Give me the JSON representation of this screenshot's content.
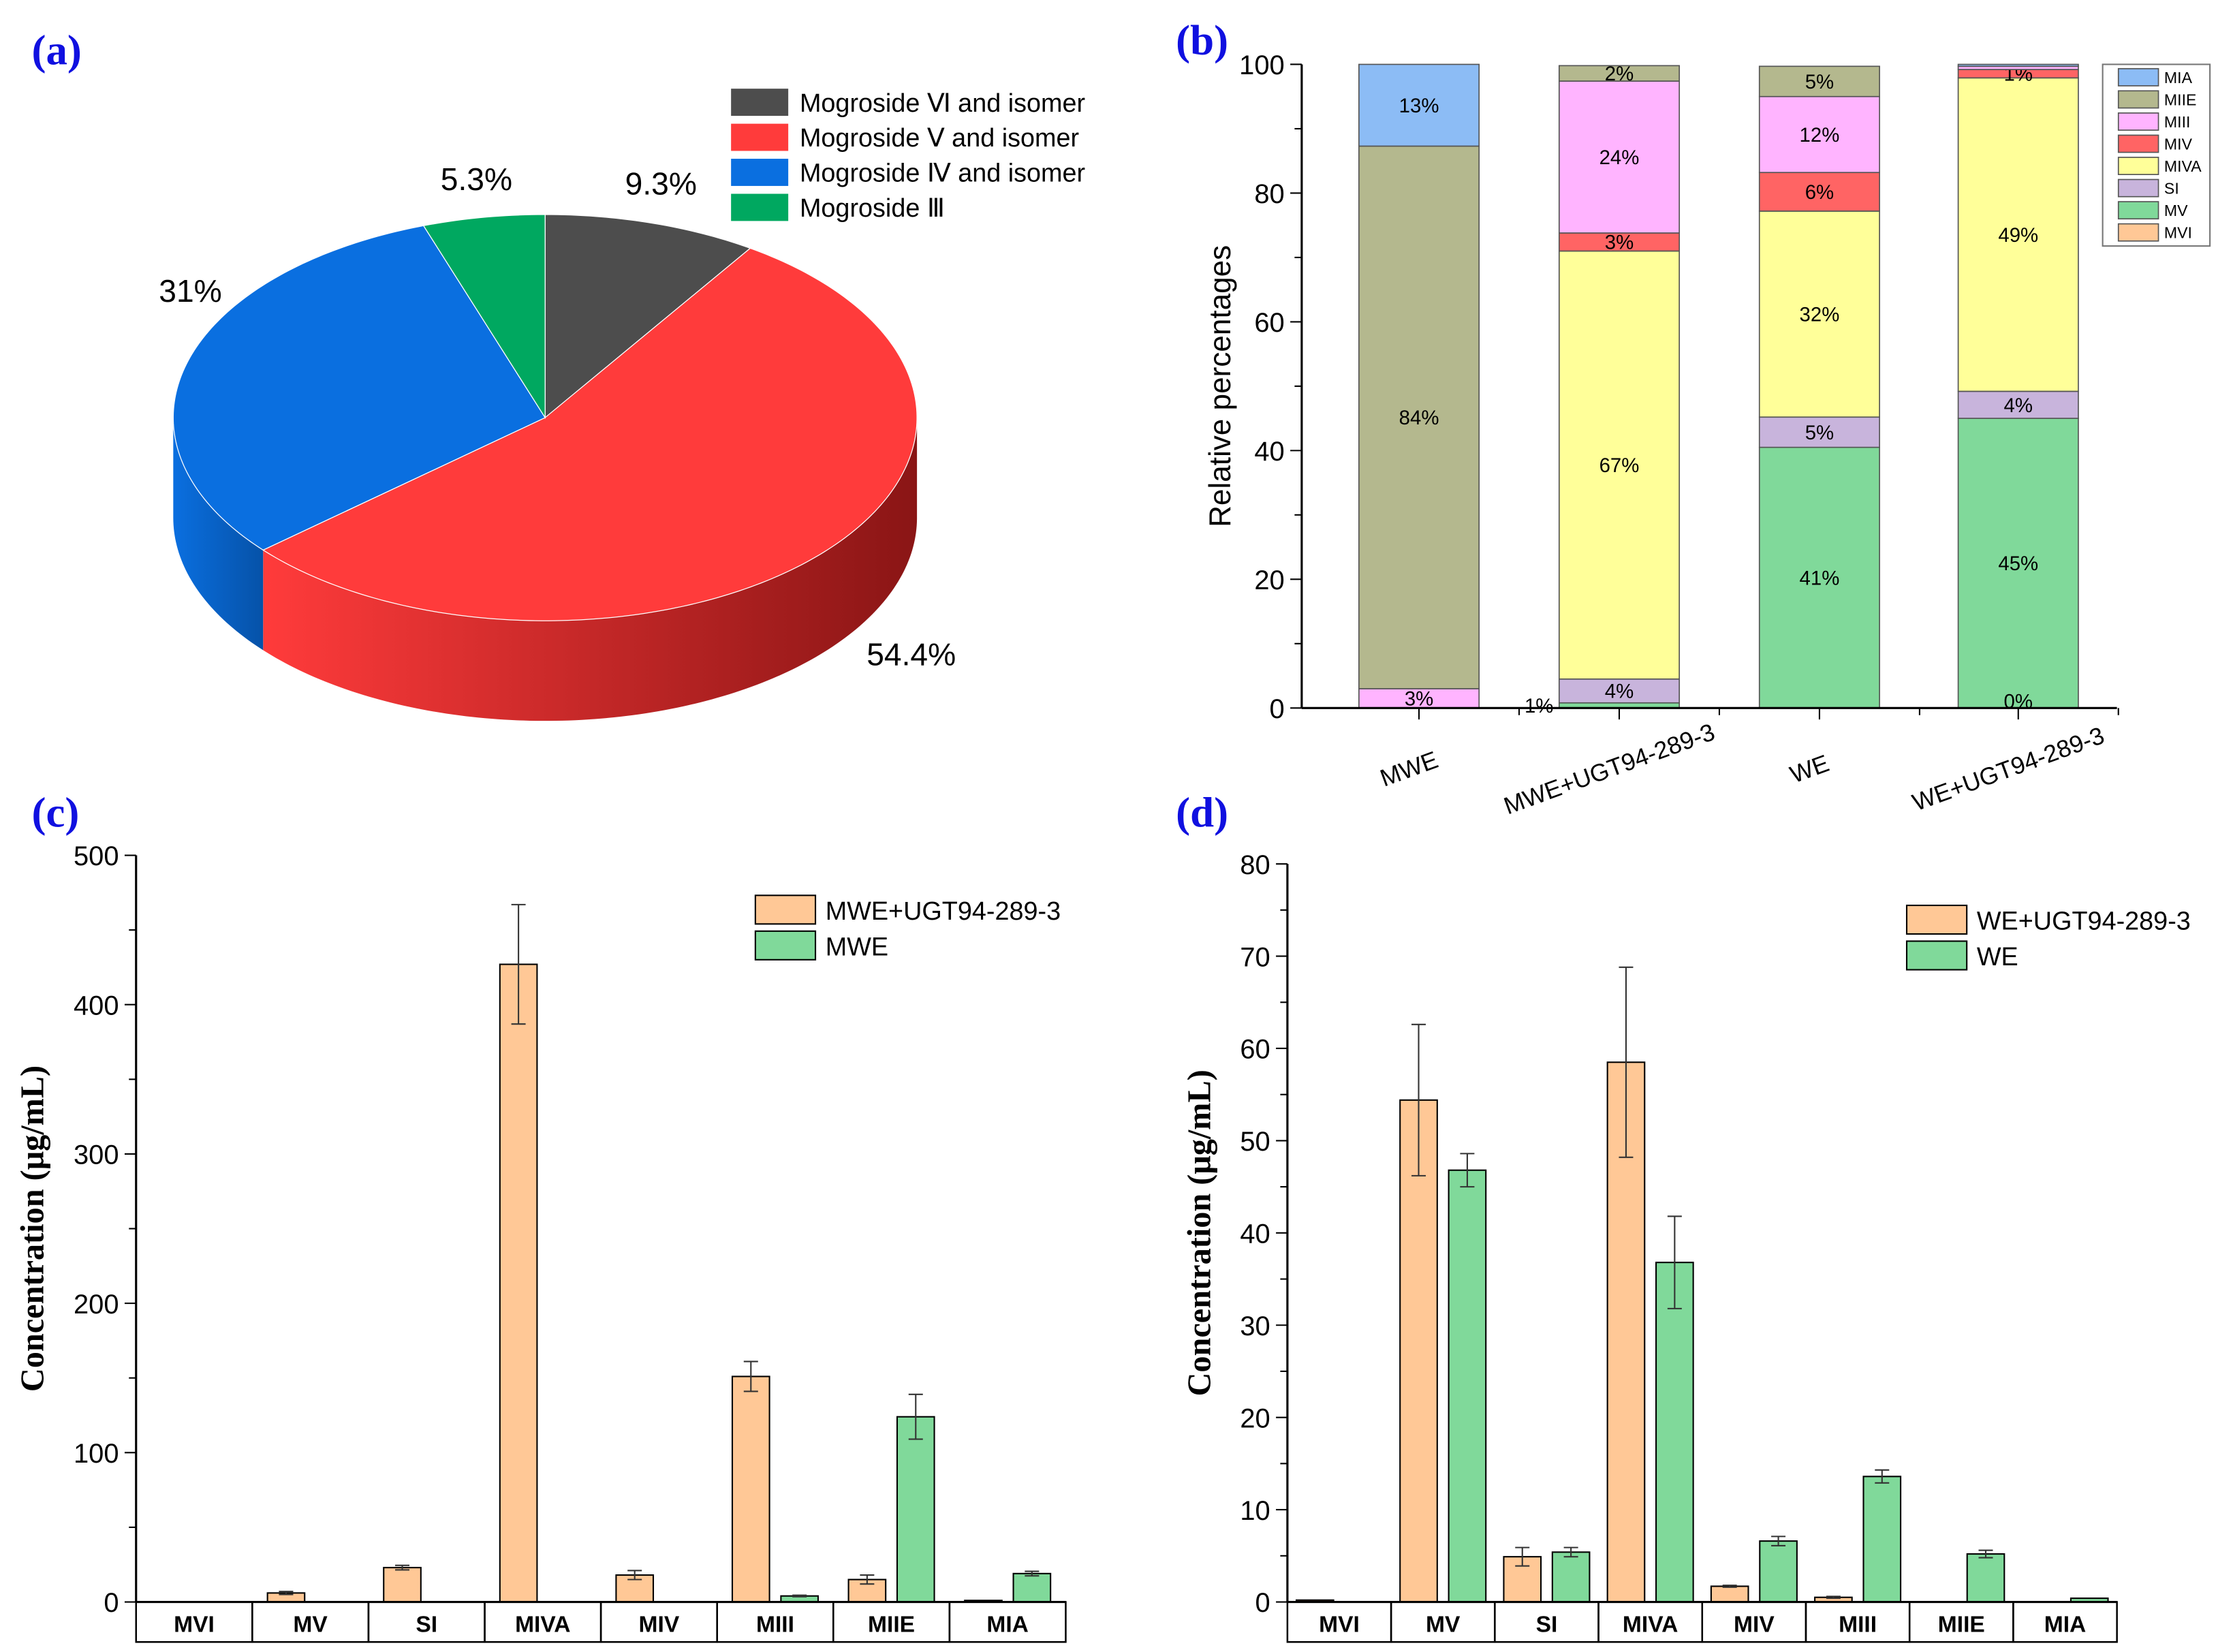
{
  "chart_data": [
    {
      "panel": "(a)",
      "type": "pie",
      "style": "3d",
      "labels": [
        "Mogroside Ⅵ and isomer",
        "Mogroside Ⅴ and isomer",
        "Mogroside Ⅳ and isomer",
        "Mogroside Ⅲ"
      ],
      "values": [
        9.3,
        54.4,
        31,
        5.3
      ],
      "value_labels": [
        "9.3%",
        "54.4%",
        "31%",
        "5.3%"
      ],
      "colors": [
        "#4d4d4d",
        "#ff3b3b",
        "#0a6fe0",
        "#00a860"
      ],
      "side_colors": [
        "#2e2e2e",
        "#8a1515",
        "#0652a8",
        "#007a45"
      ],
      "legend": "top-right"
    },
    {
      "panel": "(b)",
      "type": "bar",
      "stacked": true,
      "categories": [
        "MWE",
        "MWE+UGT94-289-3",
        "WE",
        "WE+UGT94-289-3"
      ],
      "ylabel": "Relative percentages",
      "ylim": [
        0,
        100
      ],
      "yticks": [
        0,
        20,
        40,
        60,
        80,
        100
      ],
      "series": [
        {
          "name": "MVI",
          "color": "#ffc896",
          "values": [
            0,
            0,
            0,
            0
          ],
          "labels": [
            "",
            "",
            "",
            ""
          ]
        },
        {
          "name": "MV",
          "color": "#80d99a",
          "values": [
            0,
            0.8,
            40.5,
            45
          ],
          "labels": [
            "",
            "1%",
            "41%",
            "45%"
          ]
        },
        {
          "name": "SI",
          "color": "#c8b4dc",
          "values": [
            0,
            3.7,
            4.7,
            4.2
          ],
          "labels": [
            "",
            "4%",
            "5%",
            "4%"
          ]
        },
        {
          "name": "MIVA",
          "color": "#ffff99",
          "values": [
            0,
            66.5,
            32,
            48.7
          ],
          "labels": [
            "",
            "67%",
            "32%",
            "49%"
          ]
        },
        {
          "name": "MIV",
          "color": "#ff6464",
          "values": [
            0,
            2.8,
            6,
            1.3
          ],
          "labels": [
            "",
            "3%",
            "6%",
            "1%"
          ]
        },
        {
          "name": "MIII",
          "color": "#ffb4ff",
          "values": [
            3,
            23.6,
            11.8,
            0.5
          ],
          "labels": [
            "3%",
            "24%",
            "12%",
            ""
          ]
        },
        {
          "name": "MIIE",
          "color": "#b4b88e",
          "values": [
            84.3,
            2.4,
            4.7,
            0
          ],
          "labels": [
            "84%",
            "2%",
            "5%",
            ""
          ]
        },
        {
          "name": "MIA",
          "color": "#8cbcf5",
          "values": [
            12.7,
            0,
            0,
            0.3
          ],
          "labels": [
            "13%",
            "",
            "",
            ""
          ]
        }
      ],
      "extra_labels": [
        {
          "category": "WE+UGT94-289-3",
          "label": "0%"
        }
      ],
      "legend": "top-right",
      "legend_order": [
        "MIA",
        "MIIE",
        "MIII",
        "MIV",
        "MIVA",
        "SI",
        "MV",
        "MVI"
      ]
    },
    {
      "panel": "(c)",
      "type": "bar",
      "categories": [
        "MVI",
        "MV",
        "SI",
        "MIVA",
        "MIV",
        "MIII",
        "MIIE",
        "MIA"
      ],
      "ylabel": "Concentration (μg/mL)",
      "ylim": [
        0,
        500
      ],
      "yticks": [
        0,
        100,
        200,
        300,
        400,
        500
      ],
      "series": [
        {
          "name": "MWE+UGT94-289-3",
          "color": "#ffc896",
          "values": [
            0,
            6,
            23,
            427,
            18,
            151,
            15,
            1
          ],
          "errors": [
            0,
            1,
            1.5,
            40,
            3,
            10,
            3,
            0
          ]
        },
        {
          "name": "MWE",
          "color": "#80d99a",
          "values": [
            0,
            0,
            0,
            0,
            0,
            4,
            124,
            19
          ],
          "errors": [
            0,
            0,
            0,
            0,
            0,
            0.5,
            15,
            1.5
          ]
        }
      ],
      "legend": "top-right"
    },
    {
      "panel": "(d)",
      "type": "bar",
      "categories": [
        "MVI",
        "MV",
        "SI",
        "MIVA",
        "MIV",
        "MIII",
        "MIIE",
        "MIA"
      ],
      "ylabel": "Concentration (μg/mL)",
      "ylim": [
        0,
        80
      ],
      "yticks": [
        0,
        10,
        20,
        30,
        40,
        50,
        60,
        70,
        80
      ],
      "series": [
        {
          "name": "WE+UGT94-289-3",
          "color": "#ffc896",
          "values": [
            0.2,
            54.4,
            4.9,
            58.5,
            1.7,
            0.5,
            0,
            0
          ],
          "errors": [
            0,
            8.2,
            1,
            10.3,
            0.1,
            0.1,
            0,
            0
          ]
        },
        {
          "name": "WE",
          "color": "#80d99a",
          "values": [
            0,
            46.8,
            5.4,
            36.8,
            6.6,
            13.6,
            5.2,
            0.4
          ],
          "errors": [
            0,
            1.8,
            0.5,
            5,
            0.5,
            0.7,
            0.4,
            0
          ]
        }
      ],
      "legend": "top-right"
    }
  ],
  "panel_labels": [
    "(a)",
    "(b)",
    "(c)",
    "(d)"
  ]
}
